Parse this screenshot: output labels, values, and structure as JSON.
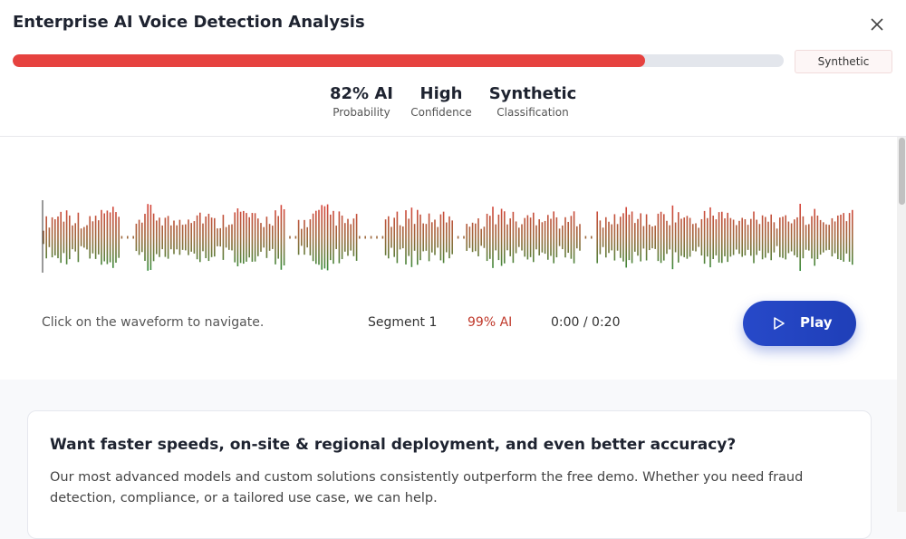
{
  "header": {
    "title": "Enterprise AI Voice Detection Analysis",
    "badge": "Synthetic",
    "progress": 82,
    "stats": [
      {
        "value": "82% AI",
        "label": "Probability"
      },
      {
        "value": "High",
        "label": "Confidence"
      },
      {
        "value": "Synthetic",
        "label": "Classification"
      }
    ]
  },
  "player": {
    "hint": "Click on the waveform to navigate.",
    "segment": "Segment 1",
    "segment_score": "99% AI",
    "time": "0:00 / 0:20",
    "button": "Play"
  },
  "promo": {
    "heading": "Want faster speeds, on-site & regional deployment, and even better accuracy?",
    "body": "Our most advanced models and custom solutions consistently outperform the free demo. Whether you need fraud detection, compliance, or a tailored use case, we can help."
  }
}
